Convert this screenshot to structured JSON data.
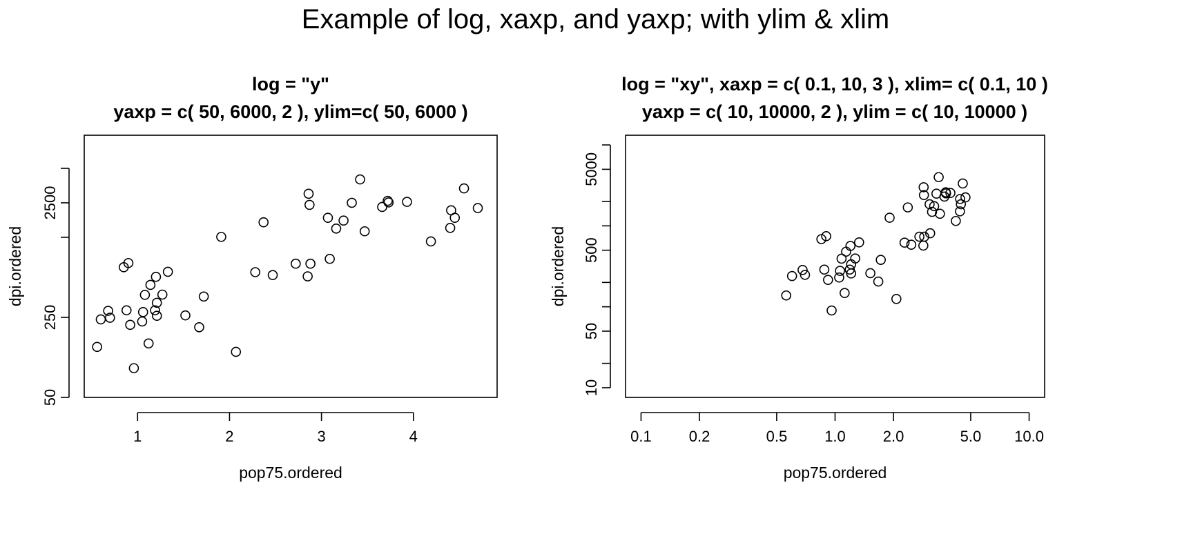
{
  "title": "Example of log, xaxp, and yaxp; with ylim & xlim",
  "chart_data": [
    {
      "type": "scatter",
      "title_line1": "log = \"y\"",
      "title_line2": "yaxp = c( 50, 6000, 2 ), ylim=c( 50, 6000 )",
      "xlabel": "pop75.ordered",
      "ylabel": "dpi.ordered",
      "xscale": "linear",
      "yscale": "log",
      "xlim": [
        0.56,
        4.78
      ],
      "ylim": [
        50,
        6000
      ],
      "x_ticks": [
        1,
        2,
        3,
        4
      ],
      "x_tick_labels": [
        "1",
        "2",
        "3",
        "4"
      ],
      "y_ticks": [
        50,
        250,
        2500
      ],
      "y_tick_labels": [
        "50",
        "250",
        "2500"
      ],
      "y_extra_ticks": [
        1250,
        5000
      ],
      "grid": false,
      "marker": "open-circle",
      "points": [
        {
          "x": 0.56,
          "y": 138
        },
        {
          "x": 0.6,
          "y": 240
        },
        {
          "x": 0.68,
          "y": 285
        },
        {
          "x": 0.7,
          "y": 248
        },
        {
          "x": 0.85,
          "y": 685
        },
        {
          "x": 0.88,
          "y": 288
        },
        {
          "x": 0.9,
          "y": 745
        },
        {
          "x": 0.92,
          "y": 215
        },
        {
          "x": 0.96,
          "y": 90
        },
        {
          "x": 1.05,
          "y": 230
        },
        {
          "x": 1.06,
          "y": 278
        },
        {
          "x": 1.08,
          "y": 393
        },
        {
          "x": 1.12,
          "y": 148
        },
        {
          "x": 1.14,
          "y": 480
        },
        {
          "x": 1.19,
          "y": 288
        },
        {
          "x": 1.2,
          "y": 565
        },
        {
          "x": 1.21,
          "y": 335
        },
        {
          "x": 1.21,
          "y": 258
        },
        {
          "x": 1.27,
          "y": 395
        },
        {
          "x": 1.33,
          "y": 625
        },
        {
          "x": 1.52,
          "y": 260
        },
        {
          "x": 1.67,
          "y": 205
        },
        {
          "x": 1.72,
          "y": 380
        },
        {
          "x": 1.91,
          "y": 1260
        },
        {
          "x": 2.07,
          "y": 125
        },
        {
          "x": 2.28,
          "y": 620
        },
        {
          "x": 2.37,
          "y": 1690
        },
        {
          "x": 2.47,
          "y": 585
        },
        {
          "x": 2.72,
          "y": 735
        },
        {
          "x": 2.85,
          "y": 570
        },
        {
          "x": 2.86,
          "y": 3000
        },
        {
          "x": 2.87,
          "y": 2400
        },
        {
          "x": 2.88,
          "y": 735
        },
        {
          "x": 3.07,
          "y": 1850
        },
        {
          "x": 3.09,
          "y": 810
        },
        {
          "x": 3.16,
          "y": 1490
        },
        {
          "x": 3.24,
          "y": 1750
        },
        {
          "x": 3.33,
          "y": 2500
        },
        {
          "x": 3.42,
          "y": 4000
        },
        {
          "x": 3.47,
          "y": 1410
        },
        {
          "x": 3.66,
          "y": 2300
        },
        {
          "x": 3.72,
          "y": 2600
        },
        {
          "x": 3.73,
          "y": 2520
        },
        {
          "x": 3.93,
          "y": 2550
        },
        {
          "x": 4.19,
          "y": 1150
        },
        {
          "x": 4.4,
          "y": 1510
        },
        {
          "x": 4.41,
          "y": 2150
        },
        {
          "x": 4.45,
          "y": 1850
        },
        {
          "x": 4.55,
          "y": 3340
        },
        {
          "x": 4.7,
          "y": 2250
        }
      ]
    },
    {
      "type": "scatter",
      "title_line1": "log = \"xy\", xaxp = c( 0.1, 10, 3 ), xlim= c( 0.1, 10 )",
      "title_line2": "yaxp = c( 10, 10000, 2 ), ylim = c( 10, 10000 )",
      "xlabel": "pop75.ordered",
      "ylabel": "dpi.ordered",
      "xscale": "log",
      "yscale": "log",
      "xlim": [
        0.1,
        10
      ],
      "ylim": [
        10,
        10000
      ],
      "x_ticks": [
        0.1,
        0.2,
        0.5,
        1.0,
        2.0,
        5.0,
        10.0
      ],
      "x_tick_labels": [
        "0.1",
        "0.2",
        "0.5",
        "1.0",
        "2.0",
        "5.0",
        "10.0"
      ],
      "y_ticks": [
        10,
        50,
        500,
        5000
      ],
      "y_tick_labels": [
        "10",
        "50",
        "500",
        "5000"
      ],
      "y_extra_ticks": [
        20,
        100,
        200,
        1000,
        2000,
        10000
      ],
      "grid": false,
      "marker": "open-circle",
      "points": [
        {
          "x": 0.56,
          "y": 138
        },
        {
          "x": 0.6,
          "y": 240
        },
        {
          "x": 0.68,
          "y": 285
        },
        {
          "x": 0.7,
          "y": 248
        },
        {
          "x": 0.85,
          "y": 685
        },
        {
          "x": 0.88,
          "y": 288
        },
        {
          "x": 0.9,
          "y": 745
        },
        {
          "x": 0.92,
          "y": 215
        },
        {
          "x": 0.96,
          "y": 90
        },
        {
          "x": 1.05,
          "y": 230
        },
        {
          "x": 1.06,
          "y": 278
        },
        {
          "x": 1.08,
          "y": 393
        },
        {
          "x": 1.12,
          "y": 148
        },
        {
          "x": 1.14,
          "y": 480
        },
        {
          "x": 1.19,
          "y": 288
        },
        {
          "x": 1.2,
          "y": 565
        },
        {
          "x": 1.21,
          "y": 335
        },
        {
          "x": 1.21,
          "y": 258
        },
        {
          "x": 1.27,
          "y": 395
        },
        {
          "x": 1.33,
          "y": 625
        },
        {
          "x": 1.52,
          "y": 260
        },
        {
          "x": 1.67,
          "y": 205
        },
        {
          "x": 1.72,
          "y": 380
        },
        {
          "x": 1.91,
          "y": 1260
        },
        {
          "x": 2.07,
          "y": 125
        },
        {
          "x": 2.28,
          "y": 620
        },
        {
          "x": 2.37,
          "y": 1690
        },
        {
          "x": 2.47,
          "y": 585
        },
        {
          "x": 2.72,
          "y": 735
        },
        {
          "x": 2.85,
          "y": 570
        },
        {
          "x": 2.86,
          "y": 3000
        },
        {
          "x": 2.87,
          "y": 2400
        },
        {
          "x": 2.88,
          "y": 735
        },
        {
          "x": 3.07,
          "y": 1850
        },
        {
          "x": 3.09,
          "y": 810
        },
        {
          "x": 3.16,
          "y": 1490
        },
        {
          "x": 3.24,
          "y": 1750
        },
        {
          "x": 3.33,
          "y": 2500
        },
        {
          "x": 3.42,
          "y": 4000
        },
        {
          "x": 3.47,
          "y": 1410
        },
        {
          "x": 3.66,
          "y": 2300
        },
        {
          "x": 3.72,
          "y": 2600
        },
        {
          "x": 3.73,
          "y": 2520
        },
        {
          "x": 3.93,
          "y": 2550
        },
        {
          "x": 4.19,
          "y": 1150
        },
        {
          "x": 4.4,
          "y": 1510
        },
        {
          "x": 4.41,
          "y": 2150
        },
        {
          "x": 4.45,
          "y": 1850
        },
        {
          "x": 4.55,
          "y": 3340
        },
        {
          "x": 4.7,
          "y": 2250
        }
      ]
    }
  ]
}
